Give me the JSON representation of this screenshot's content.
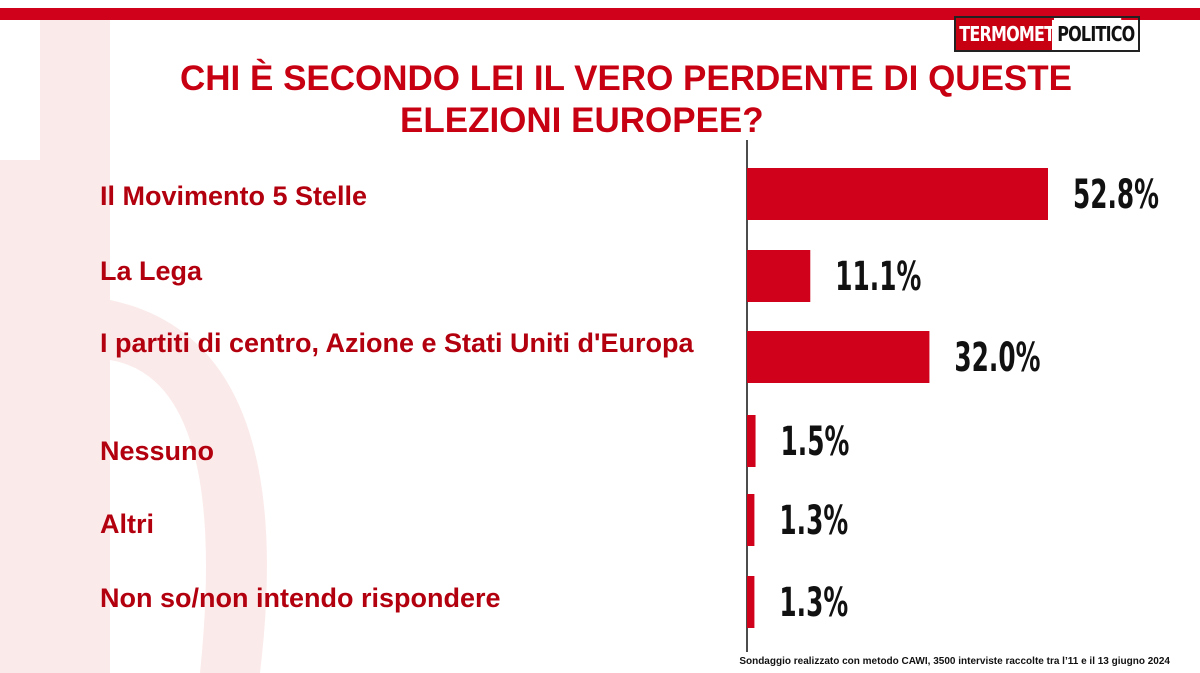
{
  "header": {
    "logo_part1": "TERMOMETRO",
    "logo_part2": "POLITICO",
    "title_line1": "CHI È SECONDO LEI IL VERO PERDENTE DI QUESTE",
    "title_line2": "ELEZIONI EUROPEE?"
  },
  "colors": {
    "accent": "#d0021b",
    "label": "#b3000f",
    "value_text": "#111111"
  },
  "chart_data": {
    "type": "bar",
    "orientation": "horizontal",
    "categories": [
      "Il Movimento 5 Stelle",
      "La Lega",
      "I partiti di centro, Azione e Stati Uniti d'Europa",
      "Nessuno",
      "Altri",
      "Non so/non intendo rispondere"
    ],
    "values": [
      52.8,
      11.1,
      32.0,
      1.5,
      1.3,
      1.3
    ],
    "value_labels": [
      "52.8%",
      "11.1%",
      "32.0%",
      "1.5%",
      "1.3%",
      "1.3%"
    ],
    "title": "CHI È SECONDO LEI IL VERO PERDENTE DI QUESTE ELEZIONI EUROPEE?",
    "xlim": [
      0,
      60
    ],
    "grid": false
  },
  "footnote": "Sondaggio realizzato con metodo CAWI, 3500 interviste raccolte tra l’11 e il 13 giugno 2024"
}
